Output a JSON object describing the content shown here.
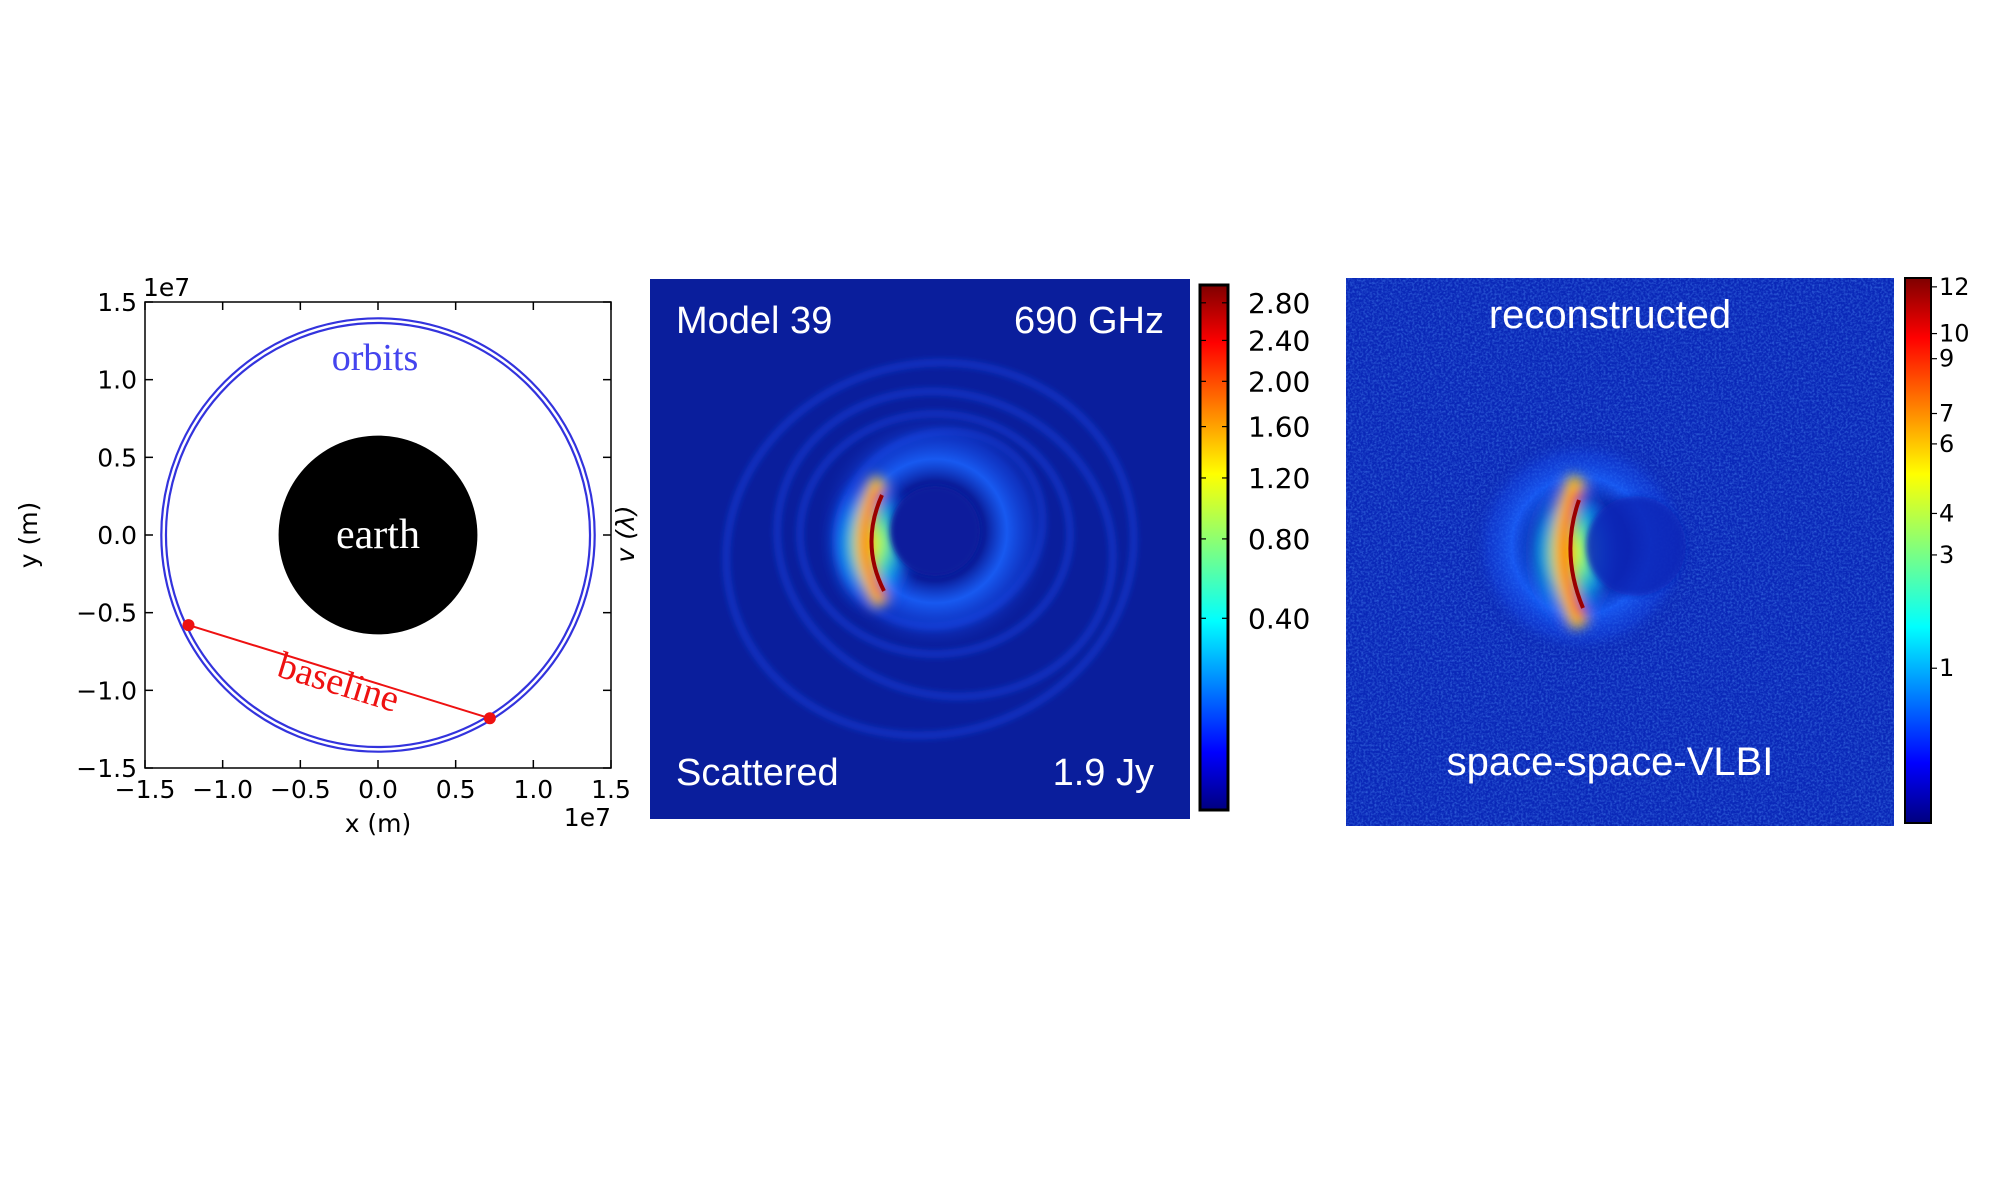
{
  "chart_data": [
    {
      "type": "scatter",
      "title": "",
      "xlabel": "x (m)",
      "ylabel": "y (m)",
      "x_scale_label": "1e7",
      "y_scale_label": "1e7",
      "xlim": [
        -15000000.0,
        15000000.0
      ],
      "ylim": [
        -15000000.0,
        15000000.0
      ],
      "xticks": [
        -1.5,
        -1.0,
        -0.5,
        0.0,
        0.5,
        1.0,
        1.5
      ],
      "xtick_labels": [
        "−1.5",
        "−1.0",
        "−0.5",
        "0.0",
        "0.5",
        "1.0",
        "1.5"
      ],
      "yticks": [
        1.5,
        1.0,
        0.5,
        0.0,
        -0.5,
        -1.0,
        -1.5
      ],
      "ytick_labels": [
        "1.5",
        "1.0",
        "0.5",
        "0.0",
        "−0.5",
        "−1.0",
        "−1.5"
      ],
      "earth": {
        "label": "earth",
        "radius_1e7": 0.64,
        "color": "#000000"
      },
      "orbits": {
        "label": "orbits",
        "radii_1e7": [
          1.365,
          1.395
        ],
        "color": "#3333dd"
      },
      "baseline": {
        "label": "baseline",
        "color": "#ee1111",
        "points_1e7": [
          [
            -1.22,
            -0.58
          ],
          [
            0.72,
            -1.18
          ]
        ]
      }
    },
    {
      "type": "heatmap",
      "title": "Model 39",
      "frequency_label": "690 GHz",
      "scattering_label": "Scattered",
      "flux_label": "1.9 Jy",
      "side_axis_label": "v (λ)",
      "colormap": "jet",
      "colorbar_ticks": [
        "2.80",
        "2.40",
        "2.00",
        "1.60",
        "1.20",
        "0.80",
        "0.40"
      ],
      "colorbar_tick_values": [
        2.8,
        2.4,
        2.0,
        1.6,
        1.2,
        0.8,
        0.4
      ],
      "colorbar_range": [
        0,
        3.0
      ]
    },
    {
      "type": "heatmap",
      "title": "reconstructed",
      "subtitle": "space-space-VLBI",
      "colormap": "jet",
      "colorbar_ticks": [
        "12",
        "10",
        "9",
        "7",
        "6",
        "4",
        "3",
        "1"
      ],
      "colorbar_tick_values": [
        12,
        10,
        9,
        7,
        6,
        4,
        3,
        1
      ],
      "colorbar_range": [
        0,
        12.4
      ]
    }
  ],
  "colors": {
    "background_image": "#0a1e9c",
    "text_white": "#ffffff"
  }
}
